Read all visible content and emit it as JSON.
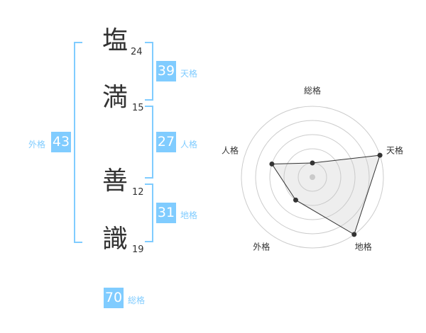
{
  "name": {
    "chars": [
      {
        "char": "塩",
        "strokes": "24"
      },
      {
        "char": "満",
        "strokes": "15"
      },
      {
        "char": "善",
        "strokes": "12"
      },
      {
        "char": "識",
        "strokes": "19"
      }
    ]
  },
  "kakusu": {
    "tenkaku": {
      "value": "39",
      "label": "天格"
    },
    "jinkaku": {
      "value": "27",
      "label": "人格"
    },
    "chikaku": {
      "value": "31",
      "label": "地格"
    },
    "gaikaku": {
      "value": "43",
      "label": "外格"
    },
    "soukaku": {
      "value": "70",
      "label": "総格"
    }
  },
  "accent_color": "#80ccff",
  "chart_data": {
    "type": "radar",
    "axes": [
      "総格",
      "天格",
      "地格",
      "外格",
      "人格"
    ],
    "values": [
      1,
      5,
      5,
      2,
      3
    ],
    "range": [
      0,
      5
    ],
    "rings": 5
  }
}
